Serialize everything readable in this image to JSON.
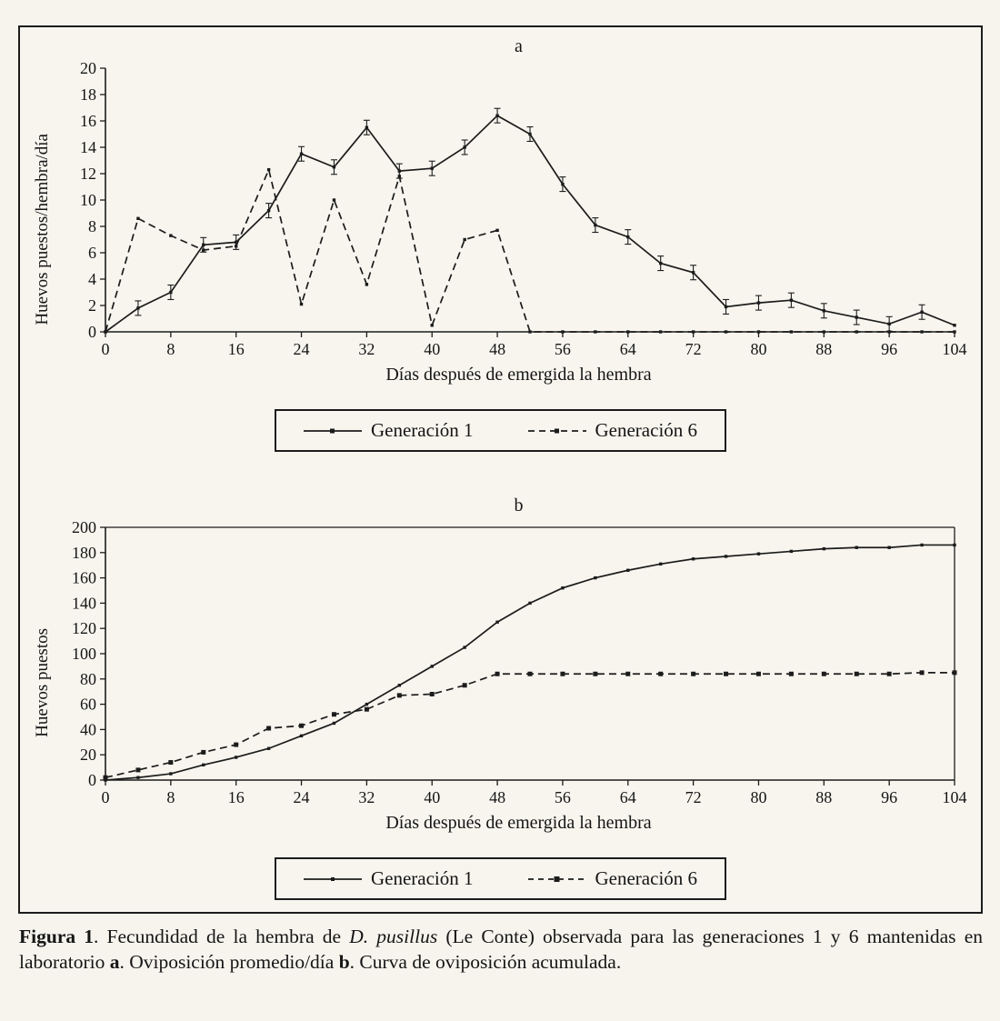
{
  "chart_data": [
    {
      "type": "line",
      "title": "a",
      "xlabel": "Días después de emergida la hembra",
      "ylabel": "Huevos puestos/hembra/día",
      "xlim": [
        0,
        104
      ],
      "ylim": [
        0,
        20
      ],
      "xticks": [
        0,
        8,
        16,
        24,
        32,
        40,
        48,
        56,
        64,
        72,
        80,
        88,
        96,
        104
      ],
      "yticks": [
        0,
        2,
        4,
        6,
        8,
        10,
        12,
        14,
        16,
        18,
        20
      ],
      "grid": false,
      "box": false,
      "legend_position": "below",
      "line_color": "#1c1c1c",
      "x": [
        0,
        4,
        8,
        12,
        16,
        20,
        24,
        28,
        32,
        36,
        40,
        44,
        48,
        52,
        56,
        60,
        64,
        68,
        72,
        76,
        80,
        84,
        88,
        92,
        96,
        100,
        104
      ],
      "series": [
        {
          "name": "Generación 1",
          "dash": false,
          "marker": true,
          "error": 0.55,
          "values": [
            0,
            1.8,
            3,
            6.6,
            6.8,
            9.2,
            13.5,
            12.5,
            15.5,
            12.2,
            12.4,
            14,
            16.4,
            15,
            11.2,
            8.1,
            7.2,
            5.2,
            4.5,
            1.9,
            2.2,
            2.4,
            1.6,
            1.1,
            0.6,
            1.5,
            0.5
          ]
        },
        {
          "name": "Generación 6",
          "dash": true,
          "marker": true,
          "values": [
            0,
            8.6,
            7.3,
            6.2,
            6.5,
            12.3,
            2.1,
            10,
            3.6,
            11.8,
            0.5,
            7,
            7.7,
            0,
            0,
            0,
            0,
            0,
            0,
            0,
            0,
            0,
            0,
            0,
            0,
            0,
            0
          ]
        }
      ]
    },
    {
      "type": "line",
      "title": "b",
      "xlabel": "Días después de emergida la hembra",
      "ylabel": "Huevos puestos",
      "xlim": [
        0,
        104
      ],
      "ylim": [
        0,
        200
      ],
      "xticks": [
        0,
        8,
        16,
        24,
        32,
        40,
        48,
        56,
        64,
        72,
        80,
        88,
        96,
        104
      ],
      "yticks": [
        0,
        20,
        40,
        60,
        80,
        100,
        120,
        140,
        160,
        180,
        200
      ],
      "grid": false,
      "box": true,
      "legend_position": "below",
      "line_color": "#1c1c1c",
      "x": [
        0,
        4,
        8,
        12,
        16,
        20,
        24,
        28,
        32,
        36,
        40,
        44,
        48,
        52,
        56,
        60,
        64,
        68,
        72,
        76,
        80,
        84,
        88,
        92,
        96,
        100,
        104
      ],
      "series": [
        {
          "name": "Generación 1",
          "dash": false,
          "marker": true,
          "values": [
            0,
            2,
            5,
            12,
            18,
            25,
            35,
            45,
            60,
            75,
            90,
            105,
            125,
            140,
            152,
            160,
            166,
            171,
            175,
            177,
            179,
            181,
            183,
            184,
            184,
            186,
            186
          ]
        },
        {
          "name": "Generación 6",
          "dash": true,
          "marker": true,
          "marker_size": 5,
          "values": [
            2,
            8,
            14,
            22,
            28,
            41,
            43,
            52,
            56,
            67,
            68,
            75,
            84,
            84,
            84,
            84,
            84,
            84,
            84,
            84,
            84,
            84,
            84,
            84,
            84,
            85,
            85
          ]
        }
      ]
    }
  ],
  "caption": {
    "parts": [
      {
        "text": "Figura 1",
        "style": "bold"
      },
      {
        "text": ".  Fecundidad de la hembra de ",
        "style": "normal"
      },
      {
        "text": "D. pusillus",
        "style": "italic"
      },
      {
        "text": " (Le Conte) observada para las generaciones 1 y 6 mantenidas en laboratorio ",
        "style": "normal"
      },
      {
        "text": "a",
        "style": "bold"
      },
      {
        "text": ". Oviposición promedio/día  ",
        "style": "normal"
      },
      {
        "text": "b",
        "style": "bold"
      },
      {
        "text": ". Curva de oviposición acumulada.",
        "style": "normal"
      }
    ]
  }
}
